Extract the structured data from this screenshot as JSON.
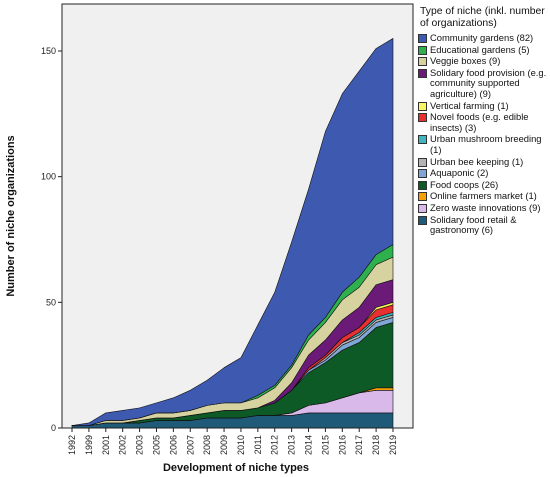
{
  "chart_data": {
    "type": "area",
    "stacked": true,
    "xlabel": "Development of niche types",
    "ylabel": "Number of niche organizations",
    "ylim": [
      0,
      160
    ],
    "yticks": [
      0,
      50,
      100,
      150
    ],
    "categories": [
      "1992",
      "1999",
      "2001",
      "2002",
      "2003",
      "2005",
      "2006",
      "2007",
      "2008",
      "2009",
      "2010",
      "2011",
      "2012",
      "2013",
      "2014",
      "2015",
      "2016",
      "2017",
      "2018",
      "2019"
    ],
    "grid": false,
    "legend_position": "right",
    "legend_title": "Type of niche (inkl. number of organizations)",
    "series": [
      {
        "name": "Solidary food retail & gastronomy (6)",
        "color": "#1f5a78",
        "values": [
          1,
          1,
          2,
          2,
          2,
          3,
          3,
          3,
          4,
          4,
          4,
          5,
          5,
          5,
          6,
          6,
          6,
          6,
          6,
          6
        ]
      },
      {
        "name": "Zero waste innovations (9)",
        "color": "#d9b8ea",
        "values": [
          0,
          0,
          0,
          0,
          0,
          0,
          0,
          0,
          0,
          0,
          0,
          0,
          0,
          1,
          3,
          4,
          6,
          8,
          9,
          9
        ]
      },
      {
        "name": "Online farmers market (1)",
        "color": "#f5a000",
        "values": [
          0,
          0,
          0,
          0,
          0,
          0,
          0,
          0,
          0,
          0,
          0,
          0,
          0,
          0,
          0,
          0,
          0,
          0,
          1,
          1
        ]
      },
      {
        "name": "Food coops (26)",
        "color": "#0d5a26",
        "values": [
          0,
          0,
          0,
          0,
          1,
          1,
          1,
          2,
          2,
          3,
          3,
          3,
          5,
          9,
          13,
          16,
          19,
          20,
          24,
          26
        ]
      },
      {
        "name": "Aquaponic (2)",
        "color": "#7fa6d4",
        "values": [
          0,
          0,
          0,
          0,
          0,
          0,
          0,
          0,
          0,
          0,
          0,
          0,
          0,
          0,
          1,
          1,
          2,
          2,
          2,
          2
        ]
      },
      {
        "name": "Urban bee keeping (1)",
        "color": "#b3b3b3",
        "values": [
          0,
          0,
          0,
          0,
          0,
          0,
          0,
          0,
          0,
          0,
          0,
          0,
          0,
          0,
          0,
          1,
          1,
          1,
          1,
          1
        ]
      },
      {
        "name": "Urban mushroom breeding (1)",
        "color": "#3fb5bd",
        "values": [
          0,
          0,
          0,
          0,
          0,
          0,
          0,
          0,
          0,
          0,
          0,
          0,
          0,
          0,
          0,
          0,
          0,
          1,
          1,
          1
        ]
      },
      {
        "name": "Novel foods (e.g. edible insects) (3)",
        "color": "#e83030",
        "values": [
          0,
          0,
          0,
          0,
          0,
          0,
          0,
          0,
          0,
          0,
          0,
          0,
          0,
          0,
          1,
          1,
          2,
          2,
          3,
          3
        ]
      },
      {
        "name": "Vertical farming (1)",
        "color": "#f8f560",
        "values": [
          0,
          0,
          0,
          0,
          0,
          0,
          0,
          0,
          0,
          0,
          0,
          0,
          0,
          0,
          0,
          0,
          0,
          0,
          1,
          1
        ]
      },
      {
        "name": "Solidary food provision (e.g. community supported agriculture) (9)",
        "color": "#6b1a78",
        "values": [
          0,
          0,
          0,
          0,
          0,
          0,
          0,
          0,
          0,
          0,
          0,
          0,
          1,
          3,
          5,
          6,
          7,
          8,
          9,
          9
        ]
      },
      {
        "name": "Veggie boxes (9)",
        "color": "#d6d3a0",
        "values": [
          0,
          0,
          1,
          1,
          1,
          2,
          2,
          2,
          3,
          3,
          3,
          4,
          5,
          6,
          6,
          7,
          8,
          8,
          8,
          9
        ]
      },
      {
        "name": "Educational gardens (5)",
        "color": "#2fb04f",
        "values": [
          0,
          0,
          0,
          0,
          0,
          0,
          0,
          0,
          0,
          0,
          0,
          1,
          1,
          1,
          2,
          2,
          3,
          4,
          4,
          5
        ]
      },
      {
        "name": "Community gardens (82)",
        "color": "#3d59b0",
        "values": [
          0,
          1,
          3,
          4,
          4,
          4,
          6,
          8,
          10,
          14,
          18,
          28,
          37,
          49,
          58,
          74,
          79,
          82,
          82,
          82
        ]
      }
    ]
  }
}
